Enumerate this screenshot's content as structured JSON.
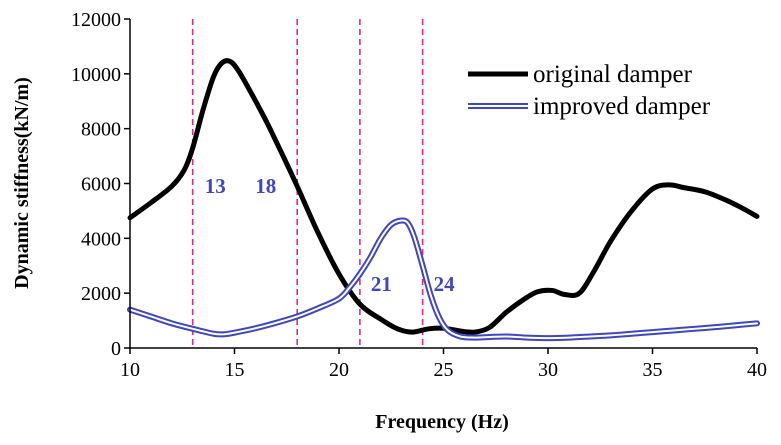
{
  "chart_data": {
    "type": "line",
    "title": "",
    "xlabel": "Frequency (Hz)",
    "ylabel": "Dynamic stiffness(kN/m)",
    "xlim": [
      10,
      40
    ],
    "ylim": [
      0,
      12000
    ],
    "xticks": [
      10,
      15,
      20,
      25,
      30,
      35,
      40
    ],
    "yticks": [
      0,
      2000,
      4000,
      6000,
      8000,
      10000,
      12000
    ],
    "x_tick_labels": [
      "10",
      "15",
      "20",
      "25",
      "30",
      "35",
      "40"
    ],
    "y_tick_labels": [
      "0",
      "2000",
      "4000",
      "6000",
      "8000",
      "10000",
      "12000"
    ],
    "legend_position": "top-right",
    "series": [
      {
        "name": "original damper",
        "color": "#000000",
        "style": "solid-thick",
        "x": [
          10,
          11,
          12,
          12.6,
          13,
          13.5,
          14,
          14.4,
          14.8,
          15.2,
          15.8,
          16.5,
          17.2,
          18,
          19,
          20,
          21,
          22,
          22.8,
          23.5,
          24.3,
          25,
          25.8,
          26.5,
          27.2,
          28,
          28.8,
          29.5,
          30.2,
          30.8,
          31.5,
          32.2,
          33,
          34,
          35,
          35.8,
          36.5,
          37.5,
          38.5,
          39.3,
          40
        ],
        "y": [
          4750,
          5300,
          5900,
          6500,
          7300,
          8700,
          9900,
          10400,
          10450,
          10100,
          9300,
          8300,
          7200,
          5900,
          4200,
          2700,
          1600,
          1050,
          700,
          580,
          700,
          720,
          620,
          580,
          750,
          1300,
          1750,
          2050,
          2100,
          1950,
          2000,
          2800,
          3900,
          5000,
          5800,
          5950,
          5850,
          5700,
          5400,
          5100,
          4800
        ]
      },
      {
        "name": "improved damper",
        "color": "#3f46c2",
        "style": "double-line",
        "x": [
          10,
          11,
          12,
          13,
          14,
          14.5,
          15,
          16,
          17,
          18,
          19,
          20,
          20.5,
          21,
          21.5,
          22,
          22.5,
          23,
          23.3,
          23.6,
          24,
          24.4,
          24.8,
          25.2,
          25.8,
          26.5,
          27.2,
          28,
          29,
          30,
          31,
          32,
          33,
          34,
          35,
          36,
          37,
          38,
          39,
          40
        ],
        "y": [
          1400,
          1150,
          900,
          700,
          520,
          500,
          560,
          720,
          920,
          1150,
          1450,
          1800,
          2200,
          2700,
          3300,
          4000,
          4500,
          4650,
          4550,
          4050,
          3000,
          1900,
          1100,
          650,
          420,
          380,
          400,
          420,
          380,
          360,
          380,
          420,
          460,
          520,
          580,
          640,
          700,
          760,
          830,
          900
        ]
      }
    ],
    "reference_lines": {
      "color": "#e0288c",
      "x": [
        13,
        18,
        21,
        24
      ],
      "labels": [
        "13",
        "18",
        "21",
        "24"
      ],
      "label_color": "#3f46c2"
    }
  }
}
